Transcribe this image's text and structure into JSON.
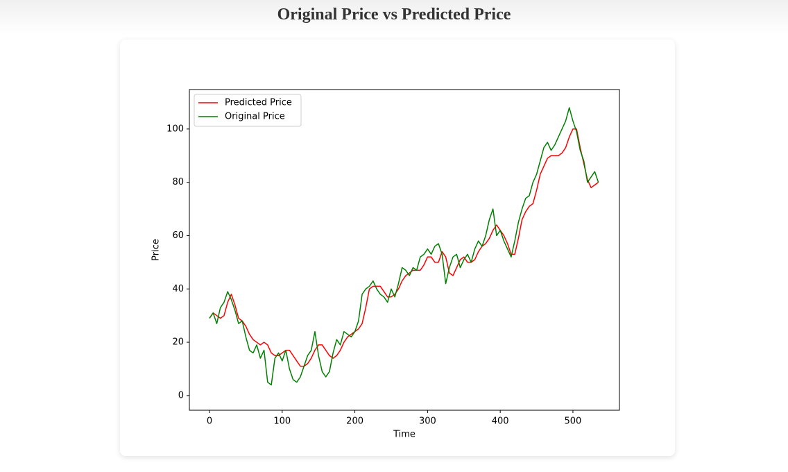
{
  "chart_data": {
    "type": "line",
    "title": "Original Price vs Predicted Price",
    "x_label": "Time",
    "y_label": "Price",
    "x": [
      0,
      5,
      10,
      15,
      20,
      25,
      30,
      35,
      40,
      45,
      50,
      55,
      60,
      65,
      70,
      75,
      80,
      85,
      90,
      95,
      100,
      105,
      110,
      115,
      120,
      125,
      130,
      135,
      140,
      145,
      150,
      155,
      160,
      165,
      170,
      175,
      180,
      185,
      190,
      195,
      200,
      205,
      210,
      215,
      220,
      225,
      230,
      235,
      240,
      245,
      250,
      255,
      260,
      265,
      270,
      275,
      280,
      285,
      290,
      295,
      300,
      305,
      310,
      315,
      320,
      325,
      330,
      335,
      340,
      345,
      350,
      355,
      360,
      365,
      370,
      375,
      380,
      385,
      390,
      395,
      400,
      405,
      410,
      415,
      420,
      425,
      430,
      435,
      440,
      445,
      450,
      455,
      460,
      465,
      470,
      475,
      480,
      485,
      490,
      495,
      500,
      505,
      510,
      515,
      520,
      525,
      530,
      535
    ],
    "series": [
      {
        "name": "Predicted Price",
        "color": "#ff0000",
        "values": [
          29,
          31,
          30,
          29,
          30,
          35,
          38,
          34,
          29,
          28,
          26,
          23,
          21,
          20,
          19,
          20,
          19,
          16,
          15,
          15,
          16,
          17,
          17,
          15,
          13,
          11,
          11,
          12,
          14,
          17,
          19,
          19,
          17,
          15,
          14,
          15,
          17,
          20,
          22,
          23,
          24,
          25,
          27,
          33,
          40,
          41,
          41,
          41,
          39,
          37,
          37,
          38,
          40,
          43,
          45,
          46,
          47,
          47,
          47,
          49,
          52,
          52,
          50,
          50,
          54,
          52,
          46,
          45,
          48,
          51,
          52,
          50,
          50,
          51,
          54,
          56,
          57,
          59,
          62,
          64,
          62,
          60,
          57,
          53,
          53,
          59,
          66,
          69,
          71,
          72,
          77,
          83,
          86,
          89,
          90,
          90,
          90,
          91,
          93,
          97,
          100,
          100,
          93,
          87,
          81,
          78,
          79,
          80
        ]
      },
      {
        "name": "Original Price",
        "color": "#008000",
        "values": [
          29,
          31,
          27,
          33,
          35,
          39,
          36,
          32,
          27,
          28,
          22,
          17,
          16,
          19,
          14,
          17,
          5,
          4,
          14,
          16,
          13,
          17,
          10,
          6,
          5,
          7,
          11,
          15,
          17,
          24,
          15,
          9,
          7,
          9,
          16,
          21,
          19,
          24,
          23,
          22,
          24,
          28,
          38,
          40,
          41,
          43,
          40,
          38,
          37,
          35,
          40,
          37,
          42,
          48,
          47,
          45,
          48,
          47,
          52,
          53,
          55,
          53,
          56,
          57,
          53,
          42,
          48,
          52,
          53,
          48,
          51,
          53,
          50,
          55,
          58,
          56,
          60,
          66,
          70,
          60,
          62,
          58,
          55,
          52,
          58,
          65,
          70,
          74,
          75,
          80,
          83,
          88,
          93,
          95,
          92,
          94,
          97,
          100,
          103,
          108,
          103,
          99,
          92,
          88,
          80,
          82,
          84,
          80
        ]
      }
    ],
    "xlim": [
      -27.7,
      564
    ],
    "ylim": [
      -5.5,
      114.8
    ],
    "xticks": [
      0,
      100,
      200,
      300,
      400,
      500
    ],
    "yticks": [
      0,
      20,
      40,
      60,
      80,
      100
    ],
    "legend": "upper left",
    "grid": false
  }
}
